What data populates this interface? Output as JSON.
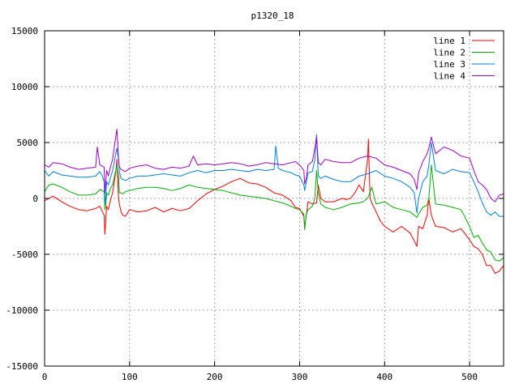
{
  "chart_data": {
    "type": "line",
    "title": "p1320_18",
    "xlabel": "",
    "ylabel": "",
    "xlim": [
      0,
      540
    ],
    "ylim": [
      -15000,
      15000
    ],
    "x_ticks": [
      0,
      100,
      200,
      300,
      400,
      500
    ],
    "y_ticks": [
      -15000,
      -10000,
      -5000,
      0,
      5000,
      10000,
      15000
    ],
    "grid": true,
    "legend_position": "top-right",
    "series": [
      {
        "name": "line 1",
        "color": "#ff0000",
        "x": [
          0,
          10,
          20,
          30,
          40,
          50,
          60,
          65,
          70,
          71,
          72,
          73,
          75,
          78,
          80,
          84,
          85,
          87,
          88,
          90,
          92,
          95,
          100,
          110,
          120,
          130,
          140,
          150,
          160,
          170,
          180,
          190,
          200,
          210,
          220,
          230,
          240,
          250,
          260,
          270,
          280,
          290,
          295,
          300,
          305,
          306,
          308,
          310,
          315,
          320,
          322,
          325,
          330,
          340,
          350,
          355,
          360,
          365,
          370,
          375,
          380,
          381,
          383,
          385,
          390,
          395,
          400,
          410,
          420,
          430,
          435,
          438,
          440,
          445,
          450,
          452,
          455,
          460,
          470,
          480,
          490,
          500,
          505,
          510,
          515,
          520,
          525,
          530,
          535,
          540
        ],
        "y": [
          -200,
          200,
          -300,
          -700,
          -1000,
          -1100,
          -900,
          -700,
          -1500,
          -3200,
          -1800,
          -700,
          -1000,
          0,
          500,
          2500,
          3500,
          0,
          -500,
          -1200,
          -1500,
          -1600,
          -1000,
          -1200,
          -1100,
          -800,
          -1200,
          -900,
          -1100,
          -900,
          -200,
          400,
          800,
          1100,
          1500,
          1800,
          1400,
          1300,
          1000,
          500,
          300,
          -200,
          -800,
          -900,
          -1600,
          -2600,
          -1500,
          -300,
          -500,
          -400,
          1200,
          0,
          -300,
          -300,
          0,
          -100,
          0,
          500,
          1200,
          600,
          3500,
          5300,
          0,
          -400,
          -1200,
          -2000,
          -2500,
          -3000,
          -2500,
          -3100,
          -3800,
          -4300,
          -2500,
          -2700,
          -1500,
          0,
          -1500,
          -2500,
          -2600,
          -3000,
          -2700,
          -3700,
          -4300,
          -4500,
          -5000,
          -6000,
          -6000,
          -6700,
          -6500,
          -6000
        ]
      },
      {
        "name": "line 2",
        "color": "#00b000",
        "x": [
          0,
          5,
          10,
          20,
          30,
          40,
          50,
          60,
          65,
          70,
          71,
          72,
          73,
          75,
          78,
          80,
          85,
          87,
          88,
          90,
          92,
          95,
          100,
          110,
          120,
          130,
          140,
          150,
          160,
          170,
          180,
          190,
          200,
          210,
          220,
          230,
          240,
          250,
          260,
          270,
          280,
          290,
          295,
          300,
          305,
          306,
          308,
          310,
          315,
          318,
          320,
          322,
          325,
          330,
          340,
          350,
          360,
          370,
          375,
          380,
          385,
          390,
          400,
          410,
          420,
          430,
          435,
          438,
          440,
          445,
          450,
          452,
          455,
          460,
          470,
          480,
          490,
          500,
          505,
          510,
          515,
          520,
          525,
          530,
          535,
          540
        ],
        "y": [
          600,
          1200,
          1300,
          1000,
          600,
          300,
          300,
          400,
          800,
          600,
          -1000,
          -500,
          500,
          300,
          1000,
          1200,
          3000,
          2000,
          500,
          500,
          400,
          600,
          700,
          900,
          1000,
          1000,
          900,
          700,
          900,
          1200,
          1000,
          900,
          800,
          700,
          500,
          300,
          200,
          100,
          0,
          -200,
          -400,
          -700,
          -900,
          -1000,
          -1400,
          -2800,
          -1400,
          -1000,
          -700,
          0,
          2500,
          500,
          -500,
          -800,
          -1000,
          -800,
          -500,
          -400,
          -300,
          0,
          1000,
          -500,
          -300,
          -800,
          -1000,
          -1200,
          -1500,
          -1700,
          -1400,
          -800,
          -600,
          0,
          3000,
          -500,
          -600,
          -800,
          -1000,
          -2500,
          -3500,
          -3300,
          -4000,
          -4600,
          -4800,
          -5500,
          -5600,
          -5300
        ]
      },
      {
        "name": "line 3",
        "color": "#0080e0",
        "x": [
          0,
          5,
          10,
          20,
          30,
          40,
          50,
          60,
          65,
          68,
          70,
          71,
          72,
          73,
          75,
          78,
          80,
          85,
          87,
          88,
          90,
          95,
          100,
          110,
          120,
          130,
          140,
          150,
          160,
          170,
          180,
          190,
          200,
          210,
          220,
          230,
          240,
          250,
          260,
          270,
          272,
          275,
          280,
          290,
          295,
          300,
          305,
          306,
          308,
          310,
          315,
          318,
          320,
          322,
          325,
          330,
          340,
          350,
          360,
          370,
          380,
          390,
          400,
          410,
          420,
          430,
          435,
          438,
          440,
          445,
          450,
          452,
          455,
          460,
          470,
          480,
          490,
          500,
          505,
          510,
          515,
          520,
          525,
          530,
          535,
          540
        ],
        "y": [
          2500,
          2000,
          2400,
          2100,
          2000,
          1900,
          1900,
          2000,
          2400,
          2000,
          1500,
          -500,
          200,
          1500,
          1200,
          2000,
          2500,
          4500,
          3500,
          2400,
          1800,
          1600,
          1800,
          2000,
          2000,
          2100,
          2200,
          2100,
          2000,
          2300,
          2500,
          2300,
          2500,
          2500,
          2600,
          2500,
          2400,
          2600,
          2500,
          2600,
          4700,
          2700,
          2500,
          2300,
          2100,
          2000,
          1200,
          700,
          1500,
          2300,
          2400,
          3500,
          5700,
          2000,
          1800,
          2000,
          1700,
          1500,
          1500,
          2000,
          2200,
          2500,
          2000,
          1800,
          1500,
          1000,
          500,
          -1300,
          0,
          1500,
          2000,
          3000,
          5000,
          2500,
          2200,
          2600,
          2400,
          2300,
          1500,
          600,
          -400,
          -1200,
          -1500,
          -1200,
          -1600,
          -1600
        ]
      },
      {
        "name": "line 4",
        "color": "#a000d0",
        "x": [
          0,
          5,
          10,
          20,
          30,
          40,
          50,
          60,
          62,
          65,
          70,
          71,
          72,
          73,
          75,
          78,
          80,
          85,
          86,
          87,
          88,
          90,
          95,
          100,
          110,
          120,
          130,
          140,
          150,
          160,
          170,
          175,
          180,
          190,
          200,
          210,
          220,
          230,
          240,
          250,
          260,
          270,
          280,
          290,
          295,
          300,
          305,
          306,
          308,
          310,
          315,
          318,
          320,
          322,
          325,
          330,
          340,
          350,
          360,
          370,
          380,
          390,
          400,
          410,
          420,
          430,
          435,
          438,
          440,
          445,
          450,
          452,
          455,
          460,
          470,
          480,
          490,
          500,
          505,
          510,
          515,
          520,
          525,
          530,
          535,
          540
        ],
        "y": [
          3000,
          2800,
          3200,
          3100,
          2800,
          2600,
          2700,
          2800,
          4600,
          3000,
          2800,
          500,
          1500,
          2500,
          2000,
          3000,
          3500,
          6200,
          5000,
          3500,
          2800,
          2600,
          2400,
          2700,
          2900,
          3000,
          2700,
          2600,
          2800,
          2700,
          2900,
          3800,
          3000,
          3100,
          3000,
          3100,
          3200,
          3100,
          2900,
          3000,
          3200,
          3100,
          3000,
          3200,
          3300,
          3000,
          2500,
          1300,
          1800,
          3000,
          3300,
          4500,
          5500,
          3200,
          3000,
          3500,
          3300,
          3200,
          3200,
          3600,
          3800,
          3600,
          3000,
          2800,
          2500,
          2200,
          1700,
          800,
          2300,
          3300,
          4000,
          4500,
          5500,
          4000,
          4600,
          4300,
          3800,
          3600,
          2500,
          1500,
          1200,
          800,
          0,
          -300,
          300,
          400
        ]
      }
    ]
  }
}
